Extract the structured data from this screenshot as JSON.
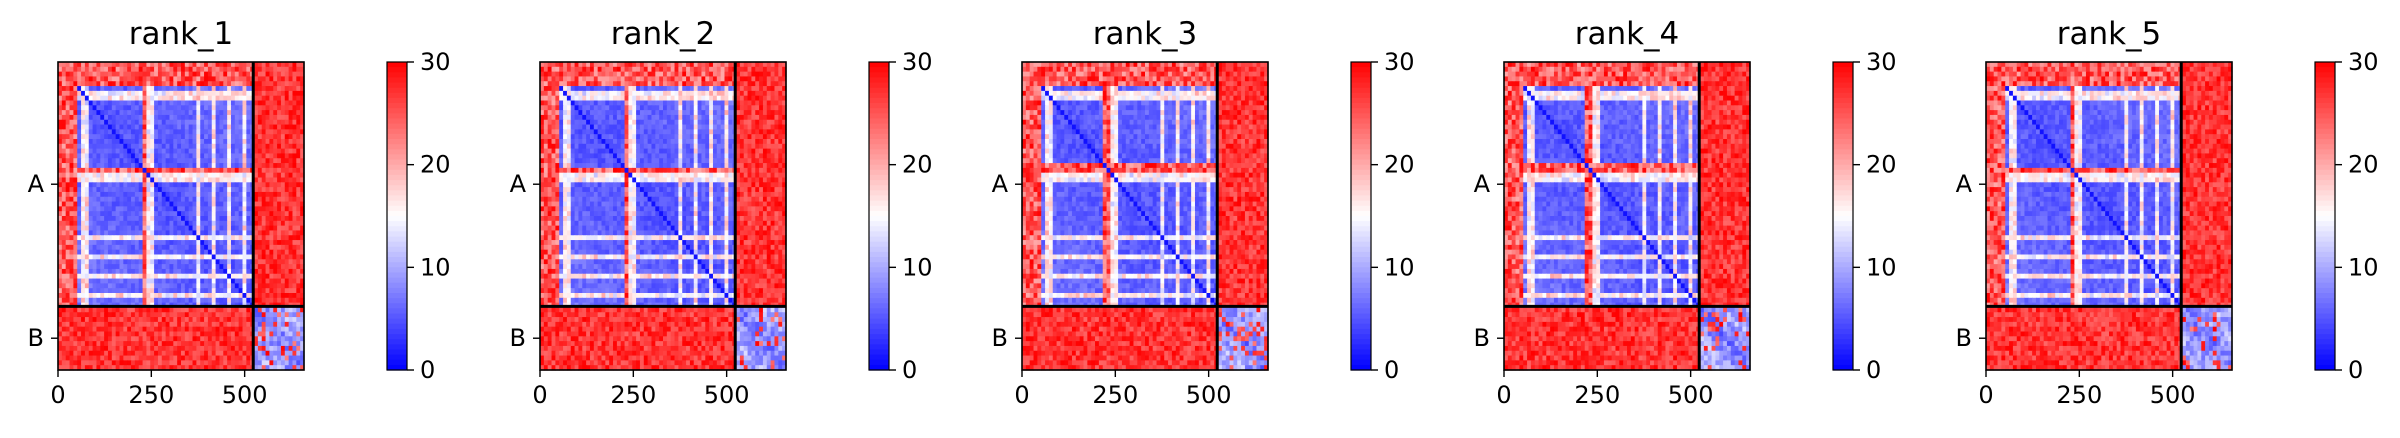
{
  "chart_data": {
    "type": "heatmap",
    "colormap": {
      "name": "bwr",
      "low": "#0000ff",
      "mid": "#ffffff",
      "high": "#ff0000"
    },
    "value_range": [
      0,
      30
    ],
    "colorbar_ticks": [
      "0",
      "10",
      "20",
      "30"
    ],
    "x_ticks": [
      {
        "value": 0,
        "label": "0"
      },
      {
        "value": 250,
        "label": "250"
      },
      {
        "value": 500,
        "label": "500"
      }
    ],
    "chain_boundary": 523,
    "total_length": 659,
    "chains": [
      {
        "label": "A",
        "start": 0,
        "end": 523
      },
      {
        "label": "B",
        "start": 523,
        "end": 659
      }
    ],
    "panels": [
      {
        "title": "rank_1",
        "seed": 11
      },
      {
        "title": "rank_2",
        "seed": 23
      },
      {
        "title": "rank_3",
        "seed": 37
      },
      {
        "title": "rank_4",
        "seed": 41
      },
      {
        "title": "rank_5",
        "seed": 53
      }
    ]
  }
}
